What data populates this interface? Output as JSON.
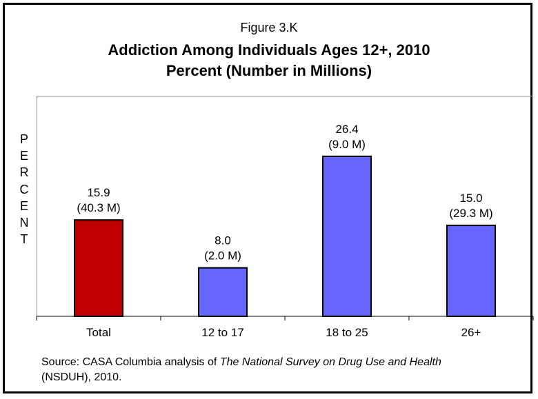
{
  "figure_label": "Figure 3.K",
  "title_line1": "Addiction Among Individuals Ages 12+, 2010",
  "title_line2": "Percent (Number in Millions)",
  "y_axis_letters": [
    "P",
    "E",
    "R",
    "C",
    "E",
    "N",
    "T"
  ],
  "source": {
    "prefix": "Source:  CASA Columbia analysis of ",
    "italic": "The National Survey on Drug Use and Health",
    "suffix": " (NSDUH), 2010."
  },
  "colors": {
    "total": "#c00000",
    "age_groups": "#6666ff"
  },
  "chart_data": {
    "type": "bar",
    "categories": [
      "Total",
      "12 to 17",
      "18 to 25",
      "26+"
    ],
    "values": [
      15.9,
      8.0,
      26.4,
      15.0
    ],
    "value_labels": [
      "15.9",
      "8.0",
      "26.4",
      "15.0"
    ],
    "count_labels": [
      "(40.3 M)",
      "(2.0 M)",
      "(9.0 M)",
      "(29.3 M)"
    ],
    "title": "Addiction Among Individuals Ages 12+, 2010",
    "xlabel": "",
    "ylabel": "PERCENT",
    "ylim": [
      0,
      34
    ],
    "grid": false
  }
}
